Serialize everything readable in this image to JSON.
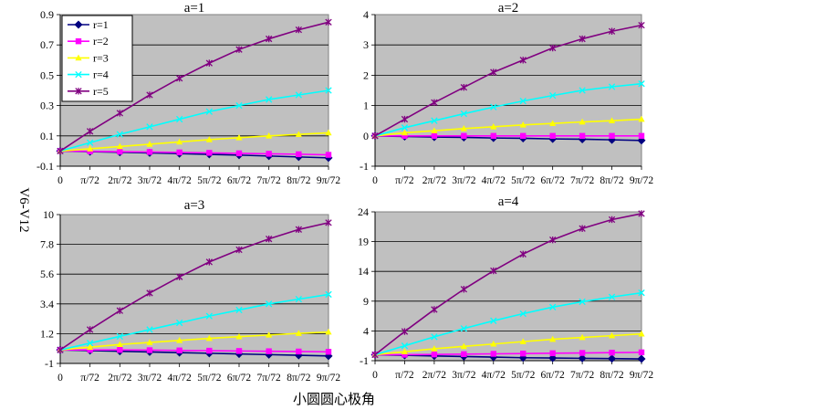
{
  "figure": {
    "ylabel": "V6-V12",
    "xlabel": "小圆圆心极角"
  },
  "colors": {
    "plot_bg": "#c0c0c0",
    "grid": "#000000",
    "r1": "#000080",
    "r2": "#ff00ff",
    "r3": "#ffff00",
    "r4": "#00ffff",
    "r5": "#800080"
  },
  "chart_data": [
    {
      "type": "line",
      "title": "a=1",
      "categories": [
        "0",
        "π/72",
        "2π/72",
        "3π/72",
        "4π/72",
        "5π/72",
        "6π/72",
        "7π/72",
        "8π/72",
        "9π/72"
      ],
      "yticks": [
        "-0.1",
        "0.1",
        "0.3",
        "0.5",
        "0.7",
        "0.9"
      ],
      "ylim": [
        -0.1,
        0.9
      ],
      "grid": true,
      "legend": "top-left",
      "series": [
        {
          "name": "r=1",
          "marker": "diamond",
          "values": [
            0,
            -0.004,
            -0.008,
            -0.012,
            -0.017,
            -0.022,
            -0.027,
            -0.033,
            -0.039,
            -0.045
          ]
        },
        {
          "name": "r=2",
          "marker": "square",
          "values": [
            0,
            -0.002,
            -0.004,
            -0.006,
            -0.009,
            -0.012,
            -0.015,
            -0.018,
            -0.021,
            -0.025
          ]
        },
        {
          "name": "r=3",
          "marker": "triangle",
          "values": [
            0,
            0.015,
            0.03,
            0.045,
            0.06,
            0.075,
            0.088,
            0.1,
            0.11,
            0.12
          ]
        },
        {
          "name": "r=4",
          "marker": "x",
          "values": [
            0,
            0.055,
            0.11,
            0.16,
            0.21,
            0.26,
            0.3,
            0.34,
            0.37,
            0.4
          ]
        },
        {
          "name": "r=5",
          "marker": "star",
          "values": [
            0,
            0.13,
            0.25,
            0.37,
            0.48,
            0.58,
            0.67,
            0.74,
            0.8,
            0.85
          ]
        }
      ]
    },
    {
      "type": "line",
      "title": "a=2",
      "categories": [
        "0",
        "π/72",
        "2π/72",
        "3π/72",
        "4π/72",
        "5π/72",
        "6π/72",
        "7π/72",
        "8π/72",
        "9π/72"
      ],
      "yticks": [
        "-1",
        "0",
        "1",
        "2",
        "3",
        "4"
      ],
      "ylim": [
        -1,
        4
      ],
      "grid": true,
      "series": [
        {
          "name": "r=1",
          "marker": "diamond",
          "values": [
            0,
            -0.02,
            -0.04,
            -0.05,
            -0.07,
            -0.08,
            -0.1,
            -0.11,
            -0.13,
            -0.15
          ]
        },
        {
          "name": "r=2",
          "marker": "square",
          "values": [
            0,
            0,
            0,
            0,
            0,
            0,
            0,
            0,
            0,
            0
          ]
        },
        {
          "name": "r=3",
          "marker": "triangle",
          "values": [
            0,
            0.1,
            0.17,
            0.24,
            0.3,
            0.36,
            0.41,
            0.46,
            0.5,
            0.55
          ]
        },
        {
          "name": "r=4",
          "marker": "x",
          "values": [
            0,
            0.27,
            0.5,
            0.73,
            0.95,
            1.15,
            1.33,
            1.5,
            1.62,
            1.72
          ]
        },
        {
          "name": "r=5",
          "marker": "star",
          "values": [
            0,
            0.55,
            1.1,
            1.6,
            2.1,
            2.5,
            2.9,
            3.2,
            3.45,
            3.65
          ]
        }
      ]
    },
    {
      "type": "line",
      "title": "a=3",
      "categories": [
        "0",
        "π/72",
        "2π/72",
        "3π/72",
        "4π/72",
        "5π/72",
        "6π/72",
        "7π/72",
        "8π/72",
        "9π/72"
      ],
      "yticks": [
        "-1",
        "1.2",
        "3.4",
        "5.6",
        "7.8",
        "10"
      ],
      "ylim": [
        -1,
        10
      ],
      "grid": true,
      "series": [
        {
          "name": "r=1",
          "marker": "diamond",
          "values": [
            0,
            -0.05,
            -0.1,
            -0.15,
            -0.2,
            -0.25,
            -0.3,
            -0.35,
            -0.4,
            -0.45
          ]
        },
        {
          "name": "r=2",
          "marker": "square",
          "values": [
            0,
            0,
            0,
            -0.02,
            -0.04,
            -0.06,
            -0.08,
            -0.1,
            -0.12,
            -0.14
          ]
        },
        {
          "name": "r=3",
          "marker": "triangle",
          "values": [
            0,
            0.2,
            0.4,
            0.55,
            0.7,
            0.85,
            0.98,
            1.1,
            1.22,
            1.32
          ]
        },
        {
          "name": "r=4",
          "marker": "x",
          "values": [
            0,
            0.5,
            1.0,
            1.5,
            2.0,
            2.5,
            2.95,
            3.4,
            3.75,
            4.1
          ]
        },
        {
          "name": "r=5",
          "marker": "star",
          "values": [
            0,
            1.5,
            2.9,
            4.2,
            5.4,
            6.5,
            7.4,
            8.2,
            8.9,
            9.4
          ]
        }
      ]
    },
    {
      "type": "line",
      "title": "a=4",
      "categories": [
        "0",
        "π/72",
        "2π/72",
        "3π/72",
        "4π/72",
        "5π/72",
        "6π/72",
        "7π/72",
        "8π/72",
        "9π/72"
      ],
      "yticks": [
        "-1",
        "4",
        "9",
        "14",
        "19",
        "24"
      ],
      "ylim": [
        -1,
        24
      ],
      "grid": true,
      "series": [
        {
          "name": "r=1",
          "marker": "diamond",
          "values": [
            0,
            -0.1,
            -0.2,
            -0.3,
            -0.4,
            -0.5,
            -0.55,
            -0.6,
            -0.65,
            -0.7
          ]
        },
        {
          "name": "r=2",
          "marker": "square",
          "values": [
            0,
            0,
            0.05,
            0.1,
            0.15,
            0.2,
            0.25,
            0.3,
            0.35,
            0.4
          ]
        },
        {
          "name": "r=3",
          "marker": "triangle",
          "values": [
            0,
            0.5,
            1.0,
            1.4,
            1.8,
            2.2,
            2.6,
            2.9,
            3.2,
            3.5
          ]
        },
        {
          "name": "r=4",
          "marker": "x",
          "values": [
            0,
            1.5,
            3.0,
            4.4,
            5.7,
            6.9,
            8.0,
            8.9,
            9.7,
            10.4
          ]
        },
        {
          "name": "r=5",
          "marker": "star",
          "values": [
            0,
            3.9,
            7.6,
            11.0,
            14.1,
            16.9,
            19.3,
            21.2,
            22.7,
            23.7
          ]
        }
      ]
    }
  ]
}
